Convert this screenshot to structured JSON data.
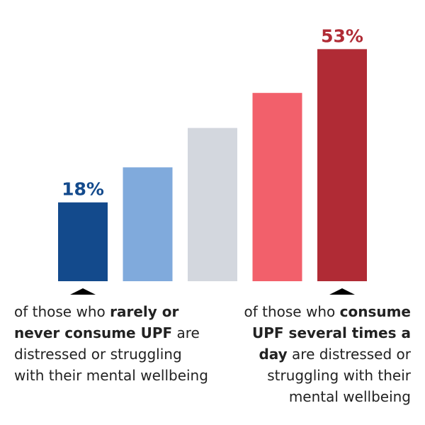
{
  "chart_data": {
    "type": "bar",
    "categories": [
      "rarely or never",
      "",
      "",
      "",
      "several times a day"
    ],
    "values": [
      18,
      26,
      35,
      43,
      53
    ],
    "value_labels": [
      "18%",
      "",
      "",
      "",
      "53%"
    ],
    "ylim": [
      0,
      55
    ],
    "grid": false,
    "legend": "none",
    "title": "",
    "xlabel": "",
    "ylabel": ""
  },
  "colors": {
    "bars": [
      "#134a8c",
      "#80aadc",
      "#d3d7de",
      "#f2606b",
      "#b02b35"
    ],
    "label_left": "#134a8c",
    "label_right": "#b02b35",
    "pointer": "#000000"
  },
  "captions": {
    "left": {
      "pre": "of those who ",
      "bold": "rarely or never consume UPF",
      "post": " are distressed or struggling with their mental wellbeing"
    },
    "right": {
      "pre": "of those who ",
      "bold": "consume UPF several times a day",
      "post": " are distressed or struggling with their mental wellbeing"
    }
  }
}
